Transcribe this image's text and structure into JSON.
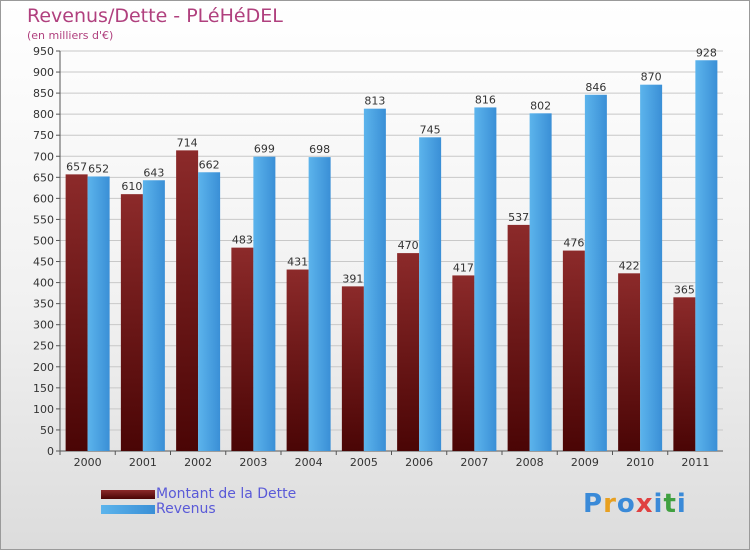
{
  "title": "Revenus/Dette - PLéHéDEL",
  "subtitle": "(en milliers d'€)",
  "logo": [
    "P",
    "r",
    "o",
    "x",
    "i",
    "t",
    "i"
  ],
  "colors": {
    "dette": "#7a1f1f",
    "revenus": "#4aa0e0",
    "title": "#b0407e",
    "legend_text": "#5a5ad8"
  },
  "chart_data": {
    "type": "bar",
    "categories": [
      "2000",
      "2001",
      "2002",
      "2003",
      "2004",
      "2005",
      "2006",
      "2007",
      "2008",
      "2009",
      "2010",
      "2011"
    ],
    "series": [
      {
        "name": "Montant de la Dette",
        "values": [
          657,
          610,
          714,
          483,
          431,
          391,
          470,
          417,
          537,
          476,
          422,
          365
        ]
      },
      {
        "name": "Revenus",
        "values": [
          652,
          643,
          662,
          699,
          698,
          813,
          745,
          816,
          802,
          846,
          870,
          928
        ]
      }
    ],
    "ylim": [
      0,
      950
    ],
    "yticks": [
      0,
      50,
      100,
      150,
      200,
      250,
      300,
      350,
      400,
      450,
      500,
      550,
      600,
      650,
      700,
      750,
      800,
      850,
      900,
      950
    ],
    "grid": true,
    "legend": "bottom-left"
  }
}
